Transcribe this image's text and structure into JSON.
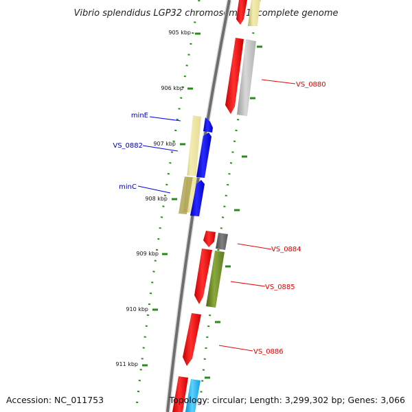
{
  "title": "Vibrio splendidus LGP32 chromosome 1, complete genome",
  "ticks": [
    "905 kbp",
    "906 kbp",
    "907 kbp",
    "908 kbp",
    "909 kbp",
    "910 kbp",
    "911 kbp"
  ],
  "labels": {
    "minE": "minE",
    "vs0882": "VS_0882",
    "minC": "minC",
    "vs0880": "VS_0880",
    "vs0884": "VS_0884",
    "vs0885": "VS_0885",
    "vs0886": "VS_0886"
  },
  "footer": {
    "accession": "Accession: NC_011753",
    "topology": "Topology: circular; Length: 3,299,302 bp; Genes: 3,066"
  },
  "colors": {
    "cds_red": "#ee0000",
    "cds_blue": "#0000ee",
    "pale_yellow": "#eee6a0",
    "olive": "#6f8f2a",
    "gray": "#bdbdbd",
    "dark_gray": "#6a6a6a",
    "cyan": "#22b8f0",
    "tick_green": "#2a8a1a",
    "label_blue": "#0000aa",
    "label_red": "#dd0000"
  }
}
